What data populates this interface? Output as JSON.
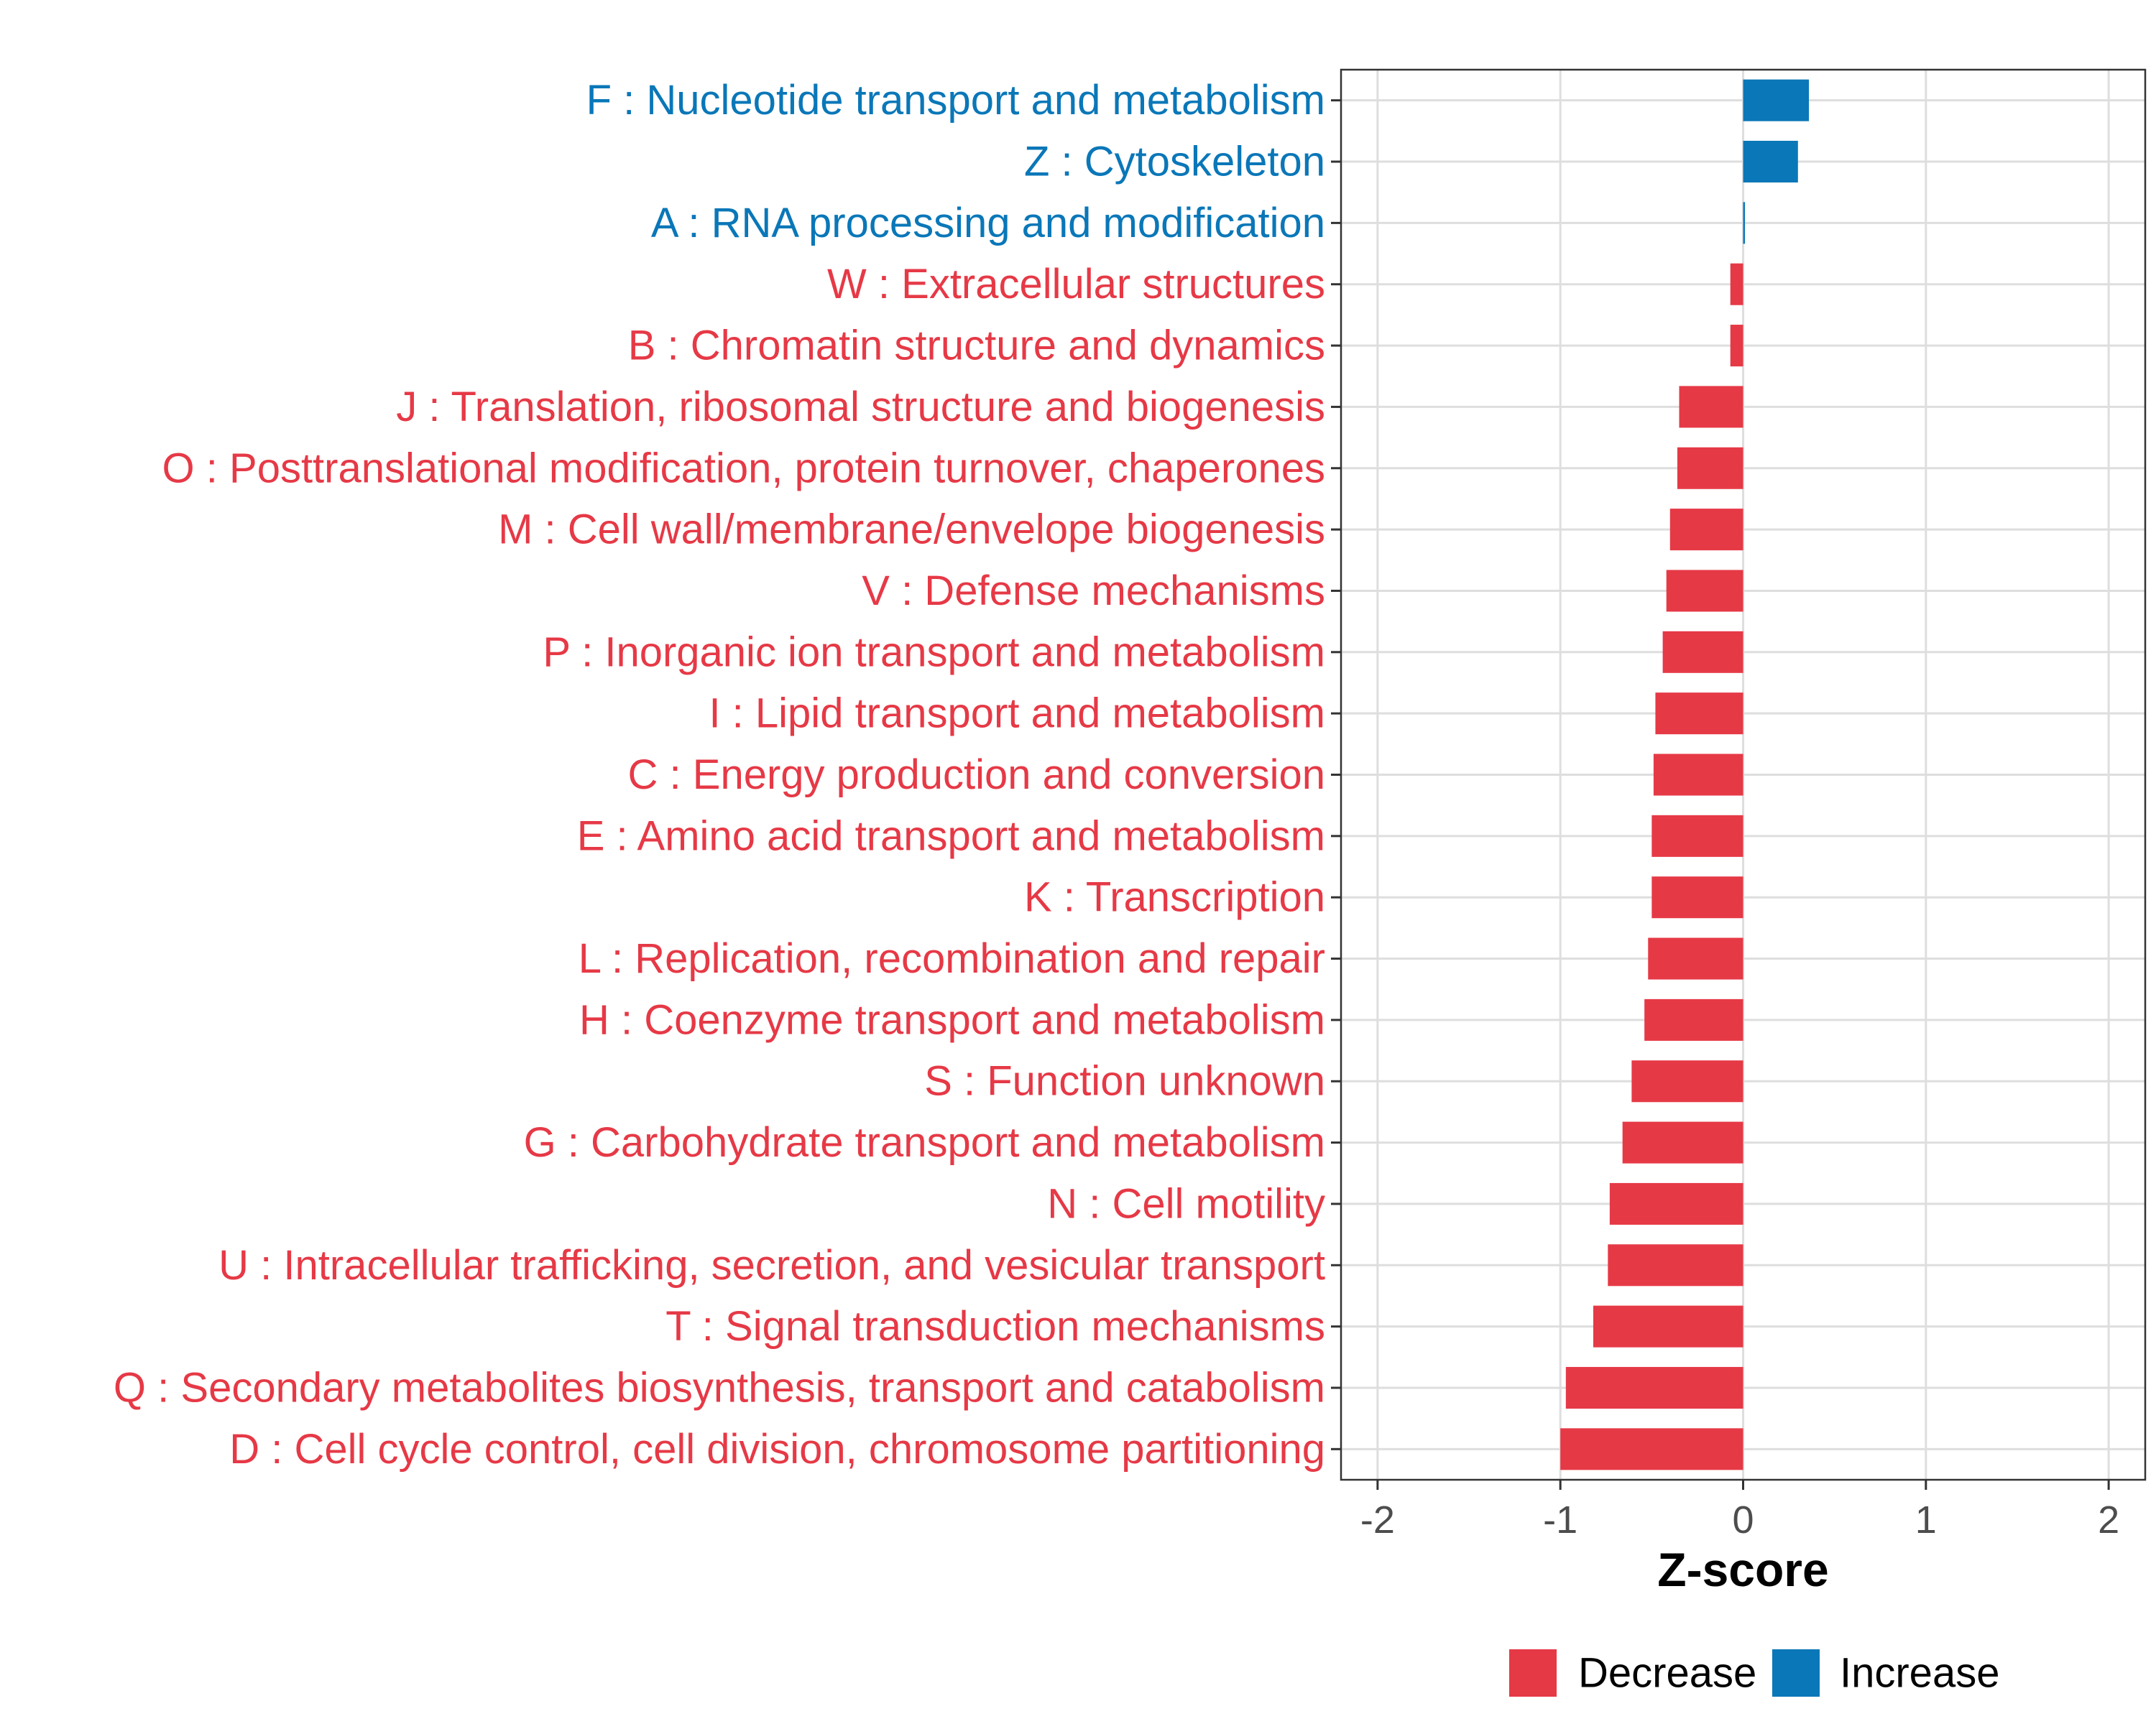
{
  "chart_data": {
    "type": "bar",
    "orientation": "horizontal",
    "xlabel": "Z-score",
    "ylabel": "",
    "xlim": [
      -2.2,
      2.2
    ],
    "x_ticks": [
      -2,
      -1,
      0,
      1,
      2
    ],
    "x_tick_labels": [
      "-2",
      "-1",
      "0",
      "1",
      "2"
    ],
    "grid": true,
    "legend_position": "bottom",
    "colors": {
      "Decrease": "#E63946",
      "Increase": "#0A77B8"
    },
    "legend": [
      {
        "name": "Decrease",
        "color": "#E63946"
      },
      {
        "name": "Increase",
        "color": "#0A77B8"
      }
    ],
    "categories": [
      "F : Nucleotide transport and metabolism",
      "Z : Cytoskeleton",
      "A : RNA processing and modification",
      "W : Extracellular structures",
      "B : Chromatin structure and dynamics",
      "J : Translation, ribosomal structure and biogenesis",
      "O : Posttranslational modification, protein turnover, chaperones",
      "M : Cell wall/membrane/envelope biogenesis",
      "V : Defense mechanisms",
      "P : Inorganic ion transport and metabolism",
      "I : Lipid transport and metabolism",
      "C : Energy production and conversion",
      "E : Amino acid transport and metabolism",
      "K : Transcription",
      "L : Replication, recombination and repair",
      "H : Coenzyme transport and metabolism",
      "S : Function unknown",
      "G : Carbohydrate transport and metabolism",
      "N : Cell motility",
      "U : Intracellular trafficking, secretion, and vesicular transport",
      "T : Signal transduction mechanisms",
      "Q : Secondary metabolites biosynthesis, transport and catabolism",
      "D : Cell cycle control, cell division, chromosome partitioning"
    ],
    "values": [
      0.36,
      0.3,
      0.01,
      -0.07,
      -0.07,
      -0.35,
      -0.36,
      -0.4,
      -0.42,
      -0.44,
      -0.48,
      -0.49,
      -0.5,
      -0.5,
      -0.52,
      -0.54,
      -0.61,
      -0.66,
      -0.73,
      -0.74,
      -0.82,
      -0.97,
      -1.0
    ],
    "groups": [
      "Increase",
      "Increase",
      "Increase",
      "Decrease",
      "Decrease",
      "Decrease",
      "Decrease",
      "Decrease",
      "Decrease",
      "Decrease",
      "Decrease",
      "Decrease",
      "Decrease",
      "Decrease",
      "Decrease",
      "Decrease",
      "Decrease",
      "Decrease",
      "Decrease",
      "Decrease",
      "Decrease",
      "Decrease",
      "Decrease"
    ]
  }
}
